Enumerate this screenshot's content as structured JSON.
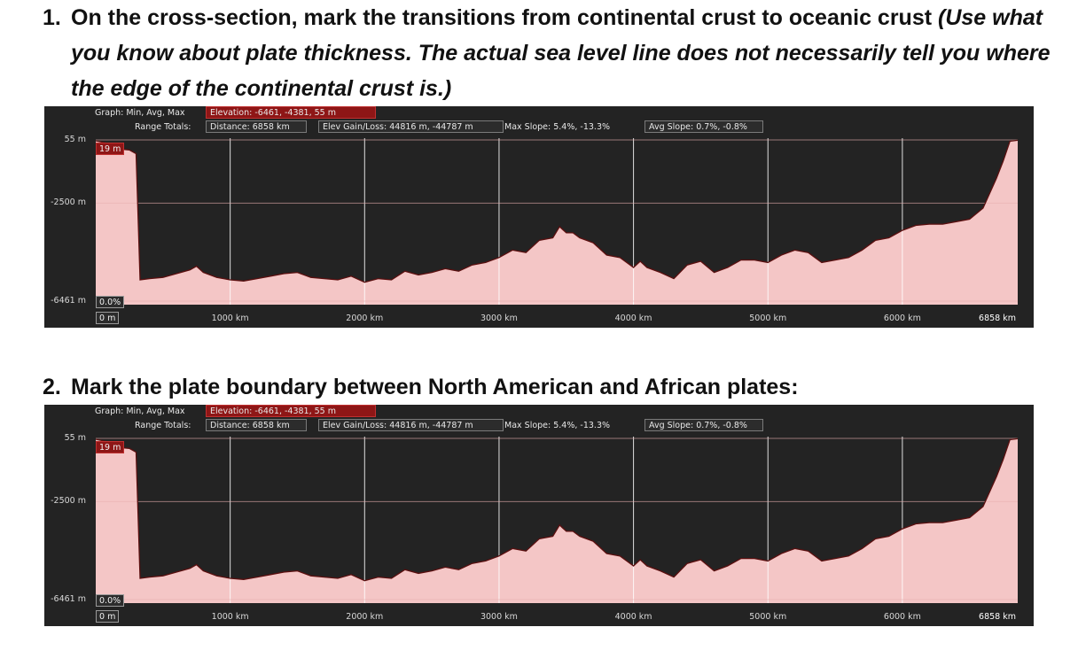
{
  "questions": {
    "q1": {
      "number": "1.",
      "text": "On the cross-section, mark the transitions from continental crust to oceanic crust",
      "italic_l1": "(Use what",
      "italic_l2": "you know about plate thickness. The actual sea level line does not necessarily tell you where",
      "italic_l3": "the edge of the continental crust is.)"
    },
    "q2": {
      "number": "2.",
      "text": "Mark the plate boundary between North American and African plates:"
    }
  },
  "profile_panel": {
    "graph_label": "Graph: Min, Avg, Max",
    "elevation_stat": "Elevation: -6461, -4381, 55 m",
    "range_label": "Range Totals:",
    "distance_stat": "Distance: 6858 km",
    "elev_gain_loss": "Elev Gain/Loss: 44816 m, -44787 m",
    "max_slope": "Max Slope: 5.4%, -13.3%",
    "avg_slope": "Avg Slope: 0.7%, -0.8%",
    "cursor_elevation": "19 m",
    "cursor_slope": "0.0%",
    "cursor_distance": "0 m",
    "colors": {
      "panel_bg": "#232323",
      "fill": "#f4c6c6",
      "line": "#5a0f0f",
      "grid": "#ffffff",
      "highlight_box": "#8e1616"
    }
  },
  "chart_data": {
    "type": "area",
    "y_tick_labels": [
      "55 m",
      "-2500 m",
      "-6461 m"
    ],
    "y_ticks": [
      55,
      -2500,
      -6461
    ],
    "x_tick_labels": [
      "1000 km",
      "2000 km",
      "3000 km",
      "4000 km",
      "5000 km",
      "6000 km",
      "6858 km"
    ],
    "x_ticks": [
      1000,
      2000,
      3000,
      4000,
      5000,
      6000,
      6858
    ],
    "xlim": [
      0,
      6858
    ],
    "ylim": [
      -6461,
      55
    ],
    "grid": true,
    "x": [
      0,
      100,
      150,
      250,
      300,
      330,
      400,
      500,
      600,
      700,
      750,
      800,
      900,
      1000,
      1100,
      1200,
      1300,
      1400,
      1500,
      1600,
      1700,
      1800,
      1900,
      2000,
      2100,
      2200,
      2300,
      2400,
      2500,
      2600,
      2700,
      2800,
      2900,
      3000,
      3100,
      3200,
      3300,
      3400,
      3450,
      3500,
      3550,
      3600,
      3700,
      3800,
      3900,
      4000,
      4050,
      4100,
      4200,
      4300,
      4400,
      4500,
      4600,
      4700,
      4800,
      4900,
      5000,
      5100,
      5200,
      5300,
      5400,
      5500,
      5600,
      5700,
      5800,
      5900,
      6000,
      6100,
      6200,
      6300,
      6400,
      6500,
      6600,
      6700,
      6750,
      6800,
      6858
    ],
    "y": [
      19,
      -100,
      -300,
      -350,
      -500,
      -5600,
      -5550,
      -5500,
      -5350,
      -5200,
      -5050,
      -5300,
      -5500,
      -5600,
      -5650,
      -5550,
      -5450,
      -5350,
      -5300,
      -5500,
      -5550,
      -5600,
      -5450,
      -5700,
      -5550,
      -5600,
      -5250,
      -5400,
      -5300,
      -5150,
      -5250,
      -5000,
      -4900,
      -4700,
      -4400,
      -4500,
      -4000,
      -3900,
      -3450,
      -3700,
      -3700,
      -3900,
      -4100,
      -4600,
      -4700,
      -5100,
      -4850,
      -5100,
      -5300,
      -5550,
      -5000,
      -4850,
      -5300,
      -5100,
      -4800,
      -4800,
      -4900,
      -4600,
      -4400,
      -4500,
      -4900,
      -4800,
      -4700,
      -4400,
      -4000,
      -3900,
      -3600,
      -3400,
      -3350,
      -3350,
      -3250,
      -3150,
      -2700,
      -1500,
      -800,
      0,
      40
    ]
  }
}
